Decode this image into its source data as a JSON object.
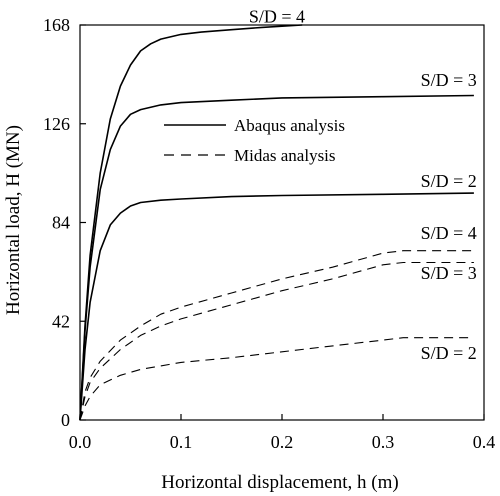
{
  "chart_data": {
    "type": "line",
    "xlabel": "Horizontal displacement, h (m)",
    "ylabel": "Horizontal load, H (MN)",
    "xlim": [
      0,
      0.4
    ],
    "ylim": [
      0,
      168
    ],
    "x_ticks": [
      "0.0",
      "0.1",
      "0.2",
      "0.3",
      "0.4"
    ],
    "y_ticks": [
      "0",
      "42",
      "84",
      "126",
      "168"
    ],
    "grid": false,
    "legend": {
      "placement": "top-center",
      "entries": [
        {
          "label": "Abaqus analysis",
          "style": "solid"
        },
        {
          "label": "Midas analysis",
          "style": "dashed"
        }
      ]
    },
    "series": [
      {
        "label": "S/D = 4",
        "method": "Abaqus",
        "style": "solid",
        "x": [
          0,
          0.005,
          0.01,
          0.02,
          0.03,
          0.04,
          0.05,
          0.06,
          0.07,
          0.08,
          0.1,
          0.12,
          0.15,
          0.18,
          0.22
        ],
        "y": [
          0,
          40,
          70,
          105,
          128,
          142,
          151,
          157,
          160,
          162,
          164,
          165,
          166,
          167,
          168
        ]
      },
      {
        "label": "S/D = 3",
        "method": "Abaqus",
        "style": "solid",
        "x": [
          0,
          0.005,
          0.01,
          0.02,
          0.03,
          0.04,
          0.05,
          0.06,
          0.08,
          0.1,
          0.15,
          0.2,
          0.3,
          0.39
        ],
        "y": [
          0,
          38,
          65,
          98,
          115,
          125,
          130,
          132,
          134,
          135,
          136,
          137,
          137.5,
          138
        ]
      },
      {
        "label": "S/D = 2",
        "method": "Abaqus",
        "style": "solid",
        "x": [
          0,
          0.005,
          0.01,
          0.02,
          0.03,
          0.04,
          0.05,
          0.06,
          0.08,
          0.1,
          0.15,
          0.2,
          0.3,
          0.39
        ],
        "y": [
          0,
          30,
          50,
          72,
          83,
          88,
          91,
          92.5,
          93.5,
          94,
          95,
          95.5,
          96,
          96.5
        ]
      },
      {
        "label": "S/D = 4",
        "method": "Midas",
        "style": "dashed",
        "x": [
          0,
          0.005,
          0.01,
          0.02,
          0.04,
          0.06,
          0.08,
          0.1,
          0.15,
          0.2,
          0.25,
          0.3,
          0.32,
          0.39
        ],
        "y": [
          0,
          12,
          18,
          25,
          34,
          40,
          45,
          48,
          54,
          60,
          65,
          71,
          72,
          72
        ]
      },
      {
        "label": "S/D = 3",
        "method": "Midas",
        "style": "dashed",
        "x": [
          0,
          0.005,
          0.01,
          0.02,
          0.04,
          0.06,
          0.08,
          0.1,
          0.15,
          0.2,
          0.25,
          0.3,
          0.32,
          0.39
        ],
        "y": [
          0,
          10,
          16,
          22,
          30,
          36,
          40,
          43,
          49,
          55,
          60,
          66,
          67,
          67
        ]
      },
      {
        "label": "S/D = 2",
        "method": "Midas",
        "style": "dashed",
        "x": [
          0,
          0.005,
          0.01,
          0.02,
          0.04,
          0.06,
          0.08,
          0.1,
          0.15,
          0.2,
          0.25,
          0.3,
          0.32,
          0.39
        ],
        "y": [
          0,
          6,
          10,
          15,
          19,
          21.5,
          23,
          24.5,
          26.5,
          29,
          31.5,
          34,
          35,
          35
        ]
      }
    ],
    "curve_labels": [
      {
        "text": "S/D = 4",
        "method": "Abaqus",
        "at": [
          0.195,
          169
        ]
      },
      {
        "text": "S/D = 3",
        "method": "Abaqus",
        "at": [
          0.365,
          142
        ]
      },
      {
        "text": "S/D = 2",
        "method": "Abaqus",
        "at": [
          0.365,
          99
        ]
      },
      {
        "text": "S/D = 4",
        "method": "Midas",
        "at": [
          0.365,
          77
        ]
      },
      {
        "text": "S/D = 3",
        "method": "Midas",
        "at": [
          0.365,
          60
        ]
      },
      {
        "text": "S/D = 2",
        "method": "Midas",
        "at": [
          0.365,
          26
        ]
      }
    ]
  }
}
